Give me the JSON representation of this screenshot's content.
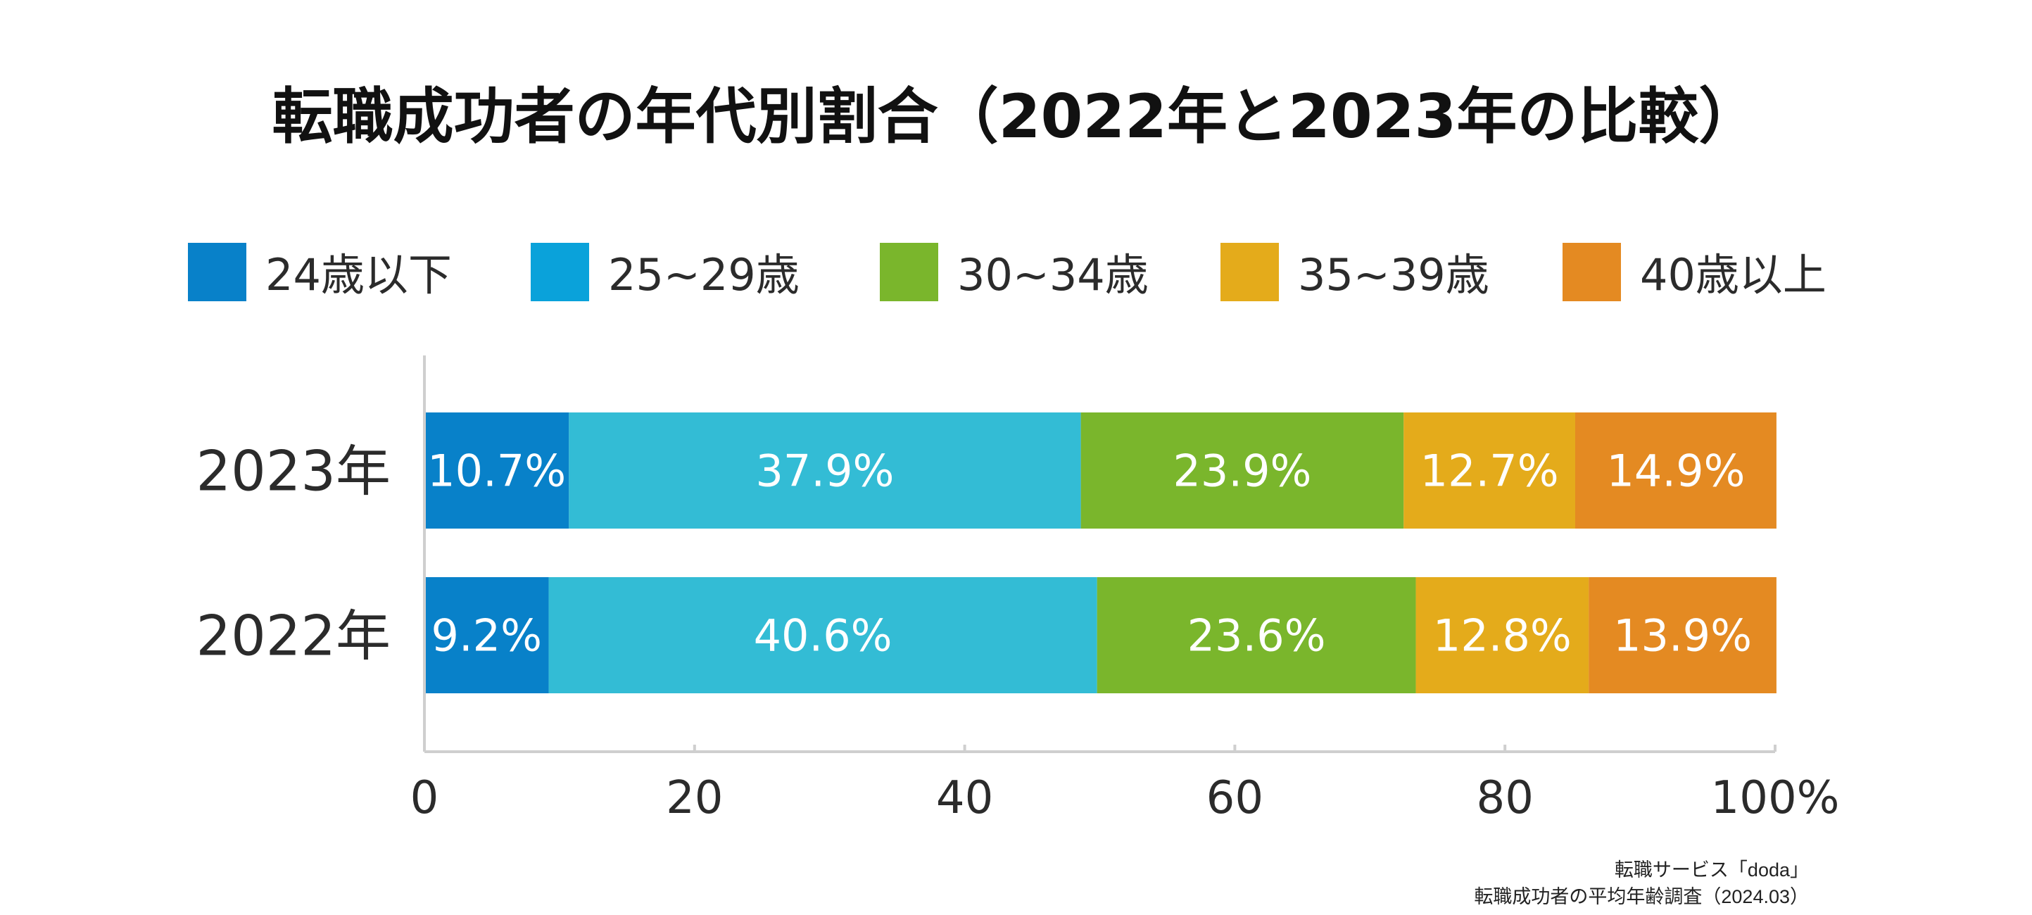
{
  "chart_data": {
    "type": "bar",
    "orientation": "horizontal",
    "stacked": true,
    "title": "転職成功者の年代別割合（2022年と2023年の比較）",
    "xlabel": "",
    "ylabel": "",
    "categories": [
      "2023年",
      "2022年"
    ],
    "series": [
      {
        "name": "24歳以下",
        "color": "#0881c9",
        "values": [
          10.7,
          9.2
        ],
        "labels": [
          "10.7%",
          "9.2%"
        ]
      },
      {
        "name": "25~29歳",
        "color": "#33bcd5",
        "values": [
          37.9,
          40.6
        ],
        "labels": [
          "37.9%",
          "40.6%"
        ]
      },
      {
        "name": "30~34歳",
        "color": "#7ab62c",
        "values": [
          23.9,
          23.6
        ],
        "labels": [
          "23.9%",
          "23.6%"
        ]
      },
      {
        "name": "35~39歳",
        "color": "#e4ab1b",
        "values": [
          12.7,
          12.8
        ],
        "labels": [
          "12.7%",
          "12.8%"
        ]
      },
      {
        "name": "40歳以上",
        "color": "#e48a22",
        "values": [
          14.9,
          13.9
        ],
        "labels": [
          "14.9%",
          "13.9%"
        ]
      }
    ],
    "xlim": [
      0,
      100
    ],
    "xticks": [
      0,
      20,
      40,
      60,
      80,
      100
    ],
    "xtick_labels": [
      "0",
      "20",
      "40",
      "60",
      "80",
      "100%"
    ],
    "legend": {
      "position": "top",
      "swatch_colors": [
        "#0881c9",
        "#0aa2da",
        "#7ab62c",
        "#e4ab1b",
        "#e48a22"
      ]
    },
    "grid": false,
    "source": {
      "line1": "転職サービス「doda」",
      "line2": "転職成功者の平均年齢調査（2024.03）"
    }
  }
}
